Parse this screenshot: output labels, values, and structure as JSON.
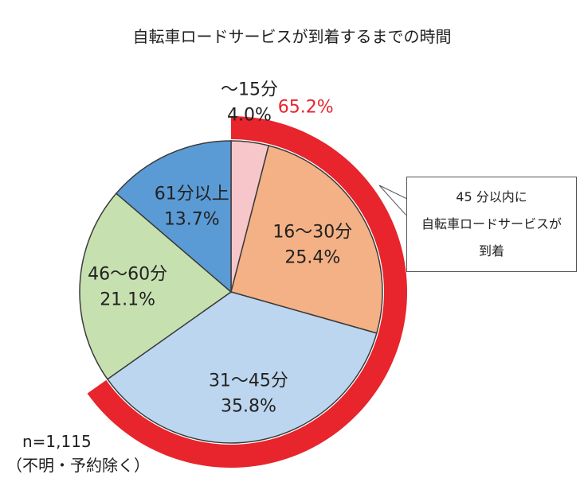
{
  "chart_data": {
    "type": "pie",
    "title": "自転車ロードサービスが到着するまでの時間",
    "slices": [
      {
        "label": "～15分",
        "value": 4.0,
        "value_label": "4.0%",
        "color": "#f7c6cb"
      },
      {
        "label": "16～30分",
        "value": 25.4,
        "value_label": "25.4%",
        "color": "#f3b185"
      },
      {
        "label": "31～45分",
        "value": 35.8,
        "value_label": "35.8%",
        "color": "#bdd6ef"
      },
      {
        "label": "46～60分",
        "value": 21.1,
        "value_label": "21.1%",
        "color": "#c7e0b0"
      },
      {
        "label": "61分以上",
        "value": 13.7,
        "value_label": "13.7%",
        "color": "#5b9bd5"
      }
    ],
    "highlight": {
      "value": 65.2,
      "label": "65.2%",
      "color": "#e8242c",
      "callout_lines": [
        "45 分以内に",
        "自転車ロードサービスが",
        "到着"
      ]
    },
    "note_lines": [
      "n=1,115",
      "（不明・予約除く）"
    ]
  }
}
